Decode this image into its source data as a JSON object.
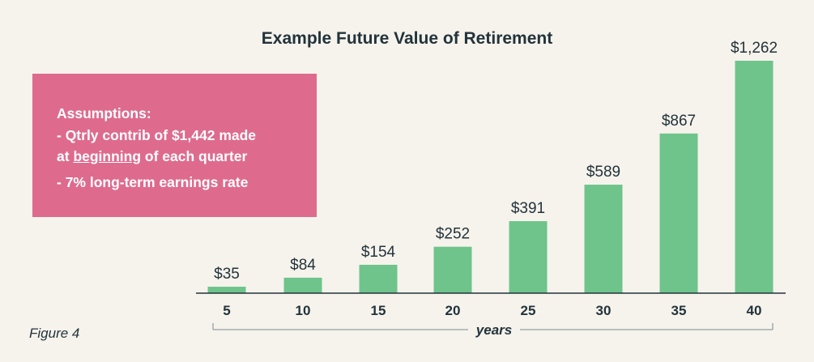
{
  "colors": {
    "background": "#f6f3ec",
    "bar": "#6ec48b",
    "text": "#22333b",
    "axis": "#22333b",
    "box": "#de6b8e",
    "box_text": "#ffffff"
  },
  "assumptions": {
    "heading": "Assumptions:",
    "line1": "- Qtrly contrib of $1,442 made",
    "line2_prefix": "at ",
    "line2_underlined": "beginning",
    "line2_suffix": " of each quarter",
    "line3": "- 7% long-term earnings rate"
  },
  "figure_label": "Figure 4",
  "chart_data": {
    "type": "bar",
    "title": "Example Future Value of Retirement",
    "xlabel": "years",
    "ylabel": "",
    "categories": [
      "5",
      "10",
      "15",
      "20",
      "25",
      "30",
      "35",
      "40"
    ],
    "values": [
      35,
      84,
      154,
      252,
      391,
      589,
      867,
      1262
    ],
    "data_labels": [
      "$35",
      "$84",
      "$154",
      "$252",
      "$391",
      "$589",
      "$867",
      "$1,262"
    ],
    "ylim": [
      0,
      1262
    ],
    "grid": false,
    "legend": "none"
  }
}
